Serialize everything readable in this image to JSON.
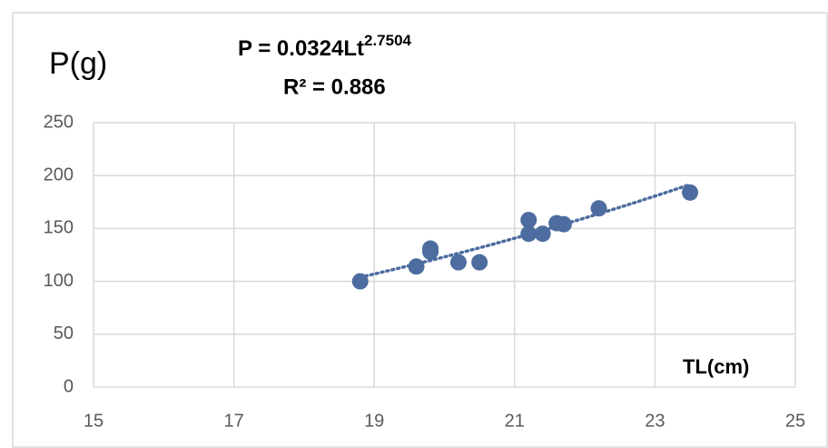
{
  "chart_data": {
    "type": "scatter",
    "title": "P(g)",
    "equation": "P = 0.0324Lt",
    "equation_exponent": "2.7504",
    "r_squared": "R² = 0.886",
    "x_label": "TL(cm)",
    "x": [
      18.8,
      19.6,
      19.8,
      19.8,
      20.2,
      20.5,
      21.2,
      21.2,
      21.4,
      21.6,
      21.7,
      22.2,
      23.5
    ],
    "series": [
      {
        "name": "P",
        "color": "#4d6c9f",
        "values": [
          100,
          114,
          131,
          128,
          118,
          118,
          158,
          145,
          145,
          155,
          154,
          169,
          184
        ]
      }
    ],
    "trendline": {
      "type": "power",
      "style": "dotted"
    },
    "xlim": [
      15,
      25
    ],
    "xticks": [
      15,
      17,
      19,
      21,
      23,
      25
    ],
    "ylim": [
      0,
      250
    ],
    "yticks": [
      0,
      50,
      100,
      150,
      200,
      250
    ],
    "grid": true
  }
}
